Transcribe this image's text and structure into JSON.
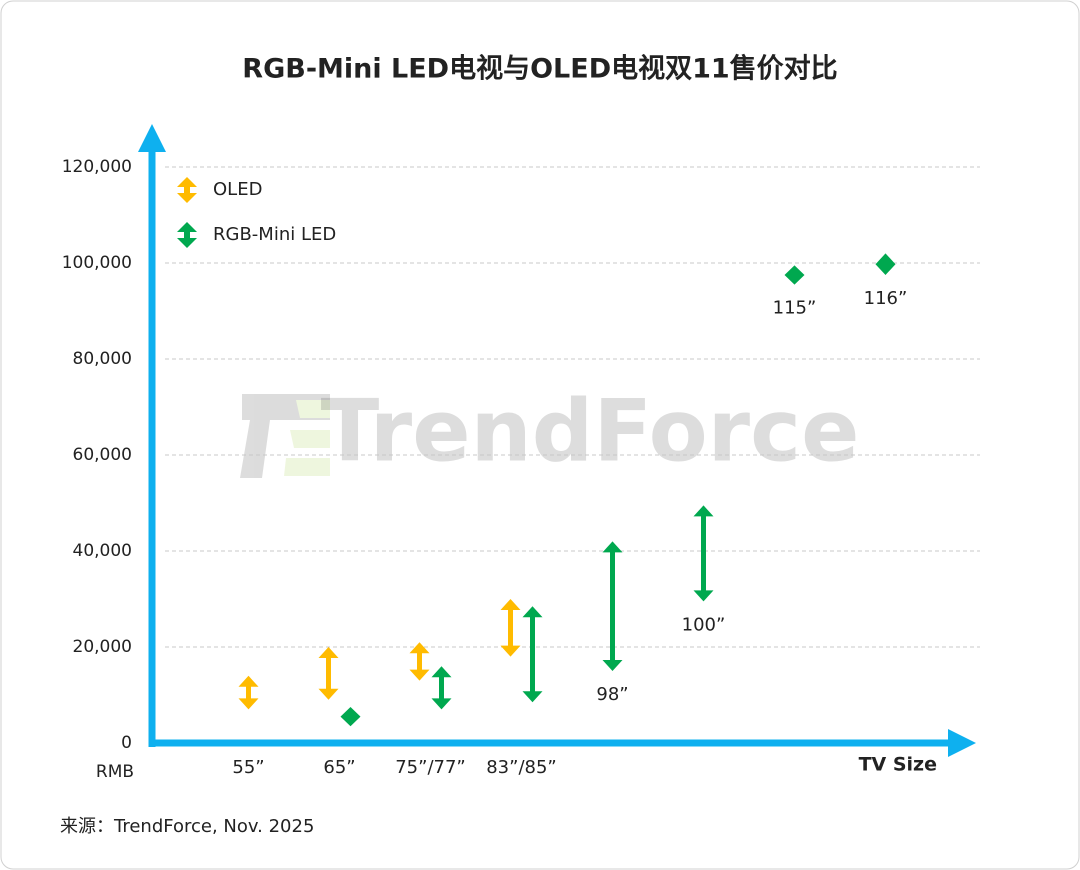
{
  "chart_data": {
    "type": "range-arrow",
    "title": "RGB-Mini LED电视与OLED电视双11售价对比",
    "watermark": "TrendForce",
    "y_unit": "RMB",
    "x_label": "TV Size",
    "source": "来源：TrendForce, Nov. 2025",
    "categories": [
      "55”",
      "65”",
      "75”/77”",
      "83”/85”",
      "98”",
      "100”",
      "115”",
      "116”"
    ],
    "series": [
      {
        "name": "OLED",
        "color": "#ffbb00",
        "low": [
          7000,
          9000,
          13000,
          18000,
          null,
          null,
          null,
          null
        ],
        "high": [
          14000,
          20000,
          21000,
          30000,
          null,
          null,
          null,
          null
        ]
      },
      {
        "name": "RGB-Mini LED",
        "color": "#00a84f",
        "low": [
          null,
          3500,
          7000,
          8500,
          15000,
          29500,
          95500,
          97500
        ],
        "high": [
          null,
          7500,
          16000,
          28500,
          42000,
          49500,
          99500,
          102000
        ]
      }
    ],
    "ylim": [
      0,
      120000
    ],
    "yticks": [
      0,
      {
        "value": 20000,
        "label": "20,000"
      },
      {
        "value": 40000,
        "label": "40,000"
      },
      {
        "value": 60000,
        "label": "60,000"
      },
      {
        "value": 80000,
        "label": "80,000"
      },
      {
        "value": 100000,
        "label": "100,000"
      },
      {
        "value": 120000,
        "label": "120,000"
      }
    ],
    "grid": true,
    "legend": "top-left"
  }
}
